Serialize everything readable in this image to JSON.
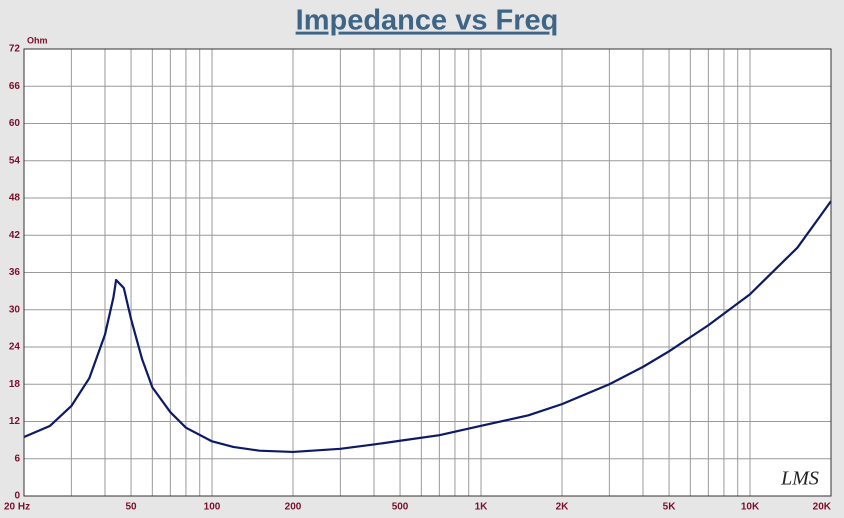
{
  "chart_data": {
    "type": "line",
    "title": "Impedance vs Freq",
    "y_unit": "Ohm",
    "watermark": "LMS",
    "x_scale": "log",
    "grid": true,
    "xlim": [
      20,
      20000
    ],
    "ylim": [
      0,
      72
    ],
    "xticks": [
      {
        "value": 20,
        "label": "20 Hz"
      },
      50,
      100,
      200,
      500,
      {
        "value": 1000,
        "label": "1K"
      },
      {
        "value": 2000,
        "label": "2K"
      },
      {
        "value": 5000,
        "label": "5K"
      },
      {
        "value": 10000,
        "label": "10K"
      },
      {
        "value": 20000,
        "label": "20K"
      }
    ],
    "xminorticks": [
      30,
      40,
      60,
      70,
      80,
      90,
      300,
      400,
      600,
      700,
      800,
      900,
      3000,
      4000,
      6000,
      7000,
      8000,
      9000
    ],
    "yticks": [
      0,
      6,
      12,
      18,
      24,
      30,
      36,
      42,
      48,
      54,
      60,
      66,
      72
    ],
    "x": [
      20,
      25,
      30,
      35,
      40,
      43,
      44,
      47,
      50,
      55,
      60,
      70,
      80,
      100,
      120,
      150,
      200,
      300,
      400,
      500,
      700,
      1000,
      1500,
      2000,
      3000,
      4000,
      5000,
      7000,
      10000,
      15000,
      20000
    ],
    "series": [
      {
        "color": "#0d1a66",
        "values": [
          9.5,
          11.3,
          14.5,
          19,
          26,
          32,
          34.8,
          33.5,
          28.5,
          22,
          17.5,
          13.5,
          11,
          8.8,
          7.9,
          7.3,
          7.1,
          7.6,
          8.3,
          8.9,
          9.8,
          11.3,
          13,
          14.8,
          18,
          20.8,
          23.3,
          27.5,
          32.5,
          40,
          47.5
        ]
      }
    ]
  }
}
